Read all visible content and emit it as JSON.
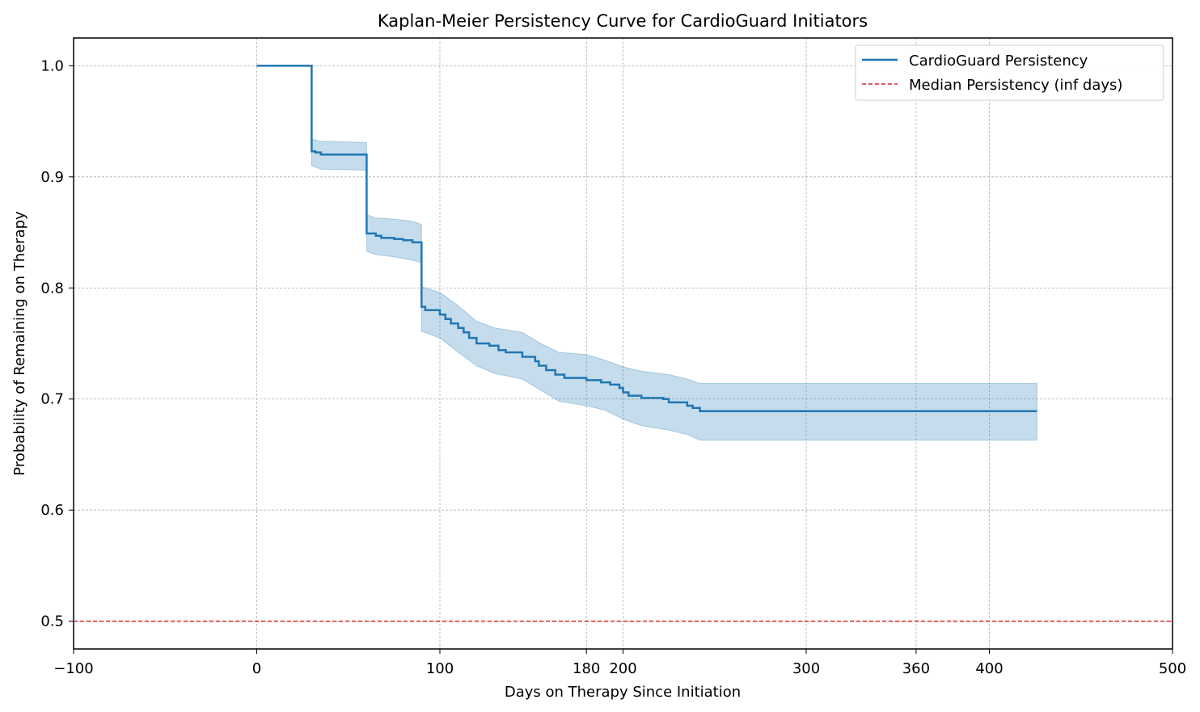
{
  "chart_data": {
    "type": "line",
    "title": "Kaplan-Meier Persistency Curve for CardioGuard Initiators",
    "xlabel": "Days on Therapy Since Initiation",
    "ylabel": "Probability of Remaining on Therapy",
    "xlim": [
      -100,
      500
    ],
    "ylim": [
      0.475,
      1.025
    ],
    "x_ticks": [
      -100,
      0,
      100,
      180,
      200,
      300,
      360,
      400,
      500
    ],
    "x_tick_labels": [
      "−100",
      "0",
      "100",
      "180",
      "200",
      "300",
      "360",
      "400",
      "500"
    ],
    "y_ticks": [
      0.5,
      0.6,
      0.7,
      0.8,
      0.9,
      1.0
    ],
    "y_tick_labels": [
      "0.5",
      "0.6",
      "0.7",
      "0.8",
      "0.9",
      "1.0"
    ],
    "grid": true,
    "legend_position": "top-right",
    "colors": {
      "survival": "#1f77b4",
      "ci_fill": "#1f77b4",
      "median": "#d62728"
    },
    "series": [
      {
        "name": "CardioGuard Persistency",
        "style": "step",
        "points": [
          [
            0,
            1.0
          ],
          [
            30,
            0.923
          ],
          [
            32,
            0.922
          ],
          [
            35,
            0.92
          ],
          [
            60,
            0.919
          ],
          [
            60,
            0.849
          ],
          [
            65,
            0.847
          ],
          [
            68,
            0.845
          ],
          [
            75,
            0.844
          ],
          [
            80,
            0.843
          ],
          [
            85,
            0.841
          ],
          [
            90,
            0.84
          ],
          [
            90,
            0.783
          ],
          [
            92,
            0.78
          ],
          [
            100,
            0.776
          ],
          [
            103,
            0.772
          ],
          [
            106,
            0.768
          ],
          [
            110,
            0.764
          ],
          [
            113,
            0.76
          ],
          [
            116,
            0.755
          ],
          [
            120,
            0.75
          ],
          [
            127,
            0.748
          ],
          [
            132,
            0.744
          ],
          [
            136,
            0.742
          ],
          [
            145,
            0.738
          ],
          [
            152,
            0.734
          ],
          [
            154,
            0.73
          ],
          [
            158,
            0.726
          ],
          [
            163,
            0.722
          ],
          [
            168,
            0.719
          ],
          [
            180,
            0.717
          ],
          [
            188,
            0.715
          ],
          [
            193,
            0.713
          ],
          [
            198,
            0.71
          ],
          [
            200,
            0.706
          ],
          [
            203,
            0.703
          ],
          [
            210,
            0.701
          ],
          [
            222,
            0.7
          ],
          [
            225,
            0.697
          ],
          [
            235,
            0.694
          ],
          [
            238,
            0.692
          ],
          [
            242,
            0.689
          ],
          [
            426,
            0.689
          ]
        ]
      },
      {
        "name": "Median Persistency (inf days)",
        "style": "hline",
        "y": 0.5
      }
    ],
    "confidence_band": [
      [
        30,
        0.91,
        0.934
      ],
      [
        35,
        0.907,
        0.932
      ],
      [
        60,
        0.906,
        0.931
      ],
      [
        60,
        0.833,
        0.866
      ],
      [
        65,
        0.83,
        0.863
      ],
      [
        75,
        0.828,
        0.862
      ],
      [
        85,
        0.825,
        0.86
      ],
      [
        90,
        0.823,
        0.857
      ],
      [
        90,
        0.761,
        0.801
      ],
      [
        100,
        0.755,
        0.796
      ],
      [
        110,
        0.742,
        0.784
      ],
      [
        120,
        0.73,
        0.77
      ],
      [
        130,
        0.723,
        0.764
      ],
      [
        145,
        0.718,
        0.76
      ],
      [
        155,
        0.708,
        0.75
      ],
      [
        165,
        0.698,
        0.742
      ],
      [
        180,
        0.694,
        0.74
      ],
      [
        190,
        0.69,
        0.735
      ],
      [
        200,
        0.682,
        0.729
      ],
      [
        210,
        0.676,
        0.725
      ],
      [
        225,
        0.672,
        0.722
      ],
      [
        235,
        0.668,
        0.718
      ],
      [
        242,
        0.663,
        0.714
      ],
      [
        426,
        0.663,
        0.714
      ]
    ]
  }
}
